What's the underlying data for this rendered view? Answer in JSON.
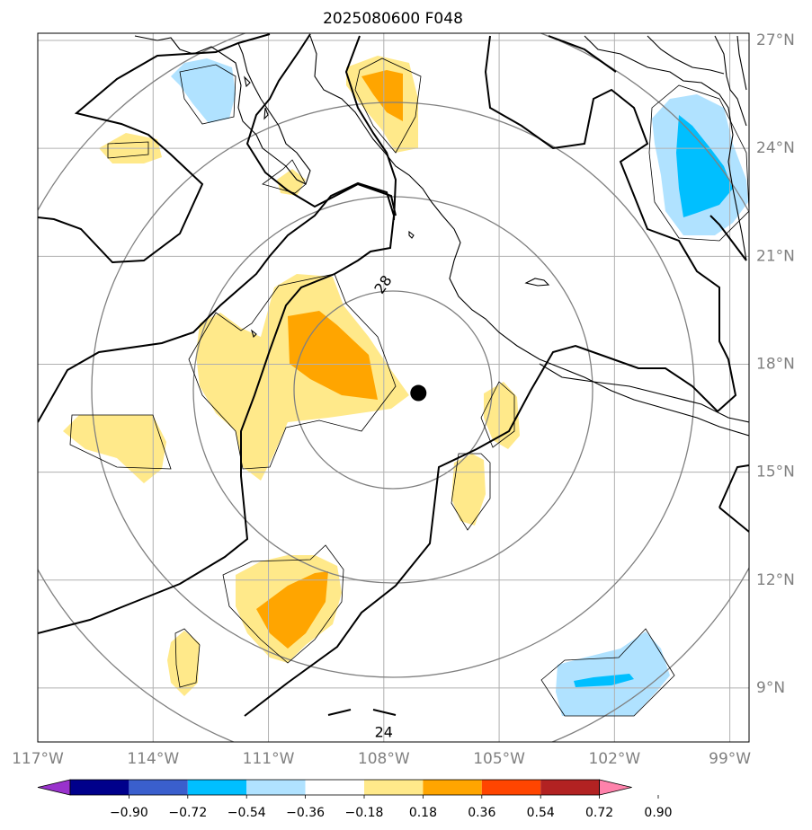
{
  "chart_data": {
    "type": "heatmap",
    "title": "2025080600 F048",
    "lon_range": [
      -117,
      -98.5
    ],
    "lat_range": [
      7.5,
      27.2
    ],
    "x_ticks": [
      {
        "value": -117,
        "label": "117°W"
      },
      {
        "value": -114,
        "label": "114°W"
      },
      {
        "value": -111,
        "label": "111°W"
      },
      {
        "value": -108,
        "label": "108°W"
      },
      {
        "value": -105,
        "label": "105°W"
      },
      {
        "value": -102,
        "label": "102°W"
      },
      {
        "value": -99,
        "label": "99°W"
      }
    ],
    "y_ticks": [
      {
        "value": 27,
        "label": "27°N"
      },
      {
        "value": 24,
        "label": "24°N"
      },
      {
        "value": 21,
        "label": "21°N"
      },
      {
        "value": 18,
        "label": "18°N"
      },
      {
        "value": 15,
        "label": "15°N"
      },
      {
        "value": 12,
        "label": "12°N"
      },
      {
        "value": 9,
        "label": "9°N"
      }
    ],
    "grid": true,
    "storm_center": {
      "lon": -107.1,
      "lat": 17.2
    },
    "contour_labels": [
      {
        "text": "28",
        "lon": -108.0,
        "lat": 20.2
      },
      {
        "text": "24",
        "lon": -108.0,
        "lat": 7.75
      }
    ],
    "colorbar": {
      "orientation": "horizontal",
      "extend": "both",
      "colors": [
        "#9932cc",
        "#00008b",
        "#3a5fcd",
        "#00bfff",
        "#b0e2ff",
        "#ffffff",
        "#ffe98a",
        "#ffa500",
        "#ff4500",
        "#b22222",
        "#ff82ab"
      ],
      "tick_labels": [
        "−0.90",
        "−0.72",
        "−0.54",
        "−0.36",
        "−0.18",
        "0.18",
        "0.36",
        "0.54",
        "0.72",
        "0.90"
      ]
    },
    "colors": {
      "light_yellow": "#ffe98a",
      "orange": "#ffa500",
      "light_blue": "#b0e2ff",
      "deep_sky_blue": "#00bfff",
      "grid": "#b0b0b0",
      "range_ring": "#808080"
    }
  }
}
